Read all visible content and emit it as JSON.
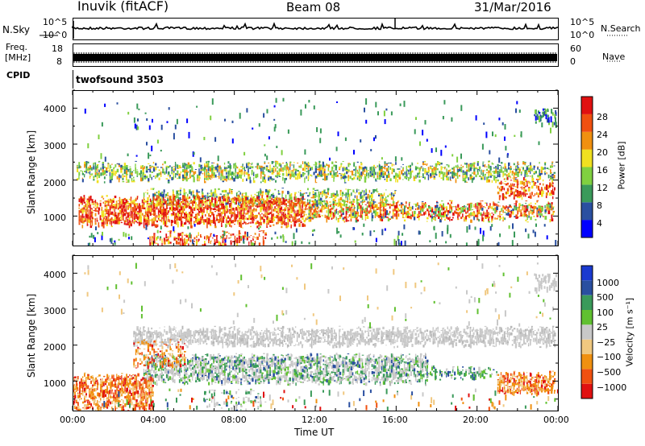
{
  "header": {
    "station": "Inuvik (fitACF)",
    "beam": "Beam 08",
    "date": "31/Mar/2016"
  },
  "noise_panel": {
    "left_label": "N.Sky",
    "left_ticks": [
      "10^5",
      "10^0"
    ],
    "right_ticks": [
      "10^5",
      "10^0"
    ],
    "right_label": "N.Search"
  },
  "freq_panel": {
    "left_label_1": "Freq.",
    "left_label_2": "[MHz]",
    "left_ticks": [
      "18",
      "8"
    ],
    "right_ticks": [
      "60",
      "0"
    ],
    "right_label": "Nave"
  },
  "cpid": {
    "label": "CPID",
    "value": "twofsound 3503"
  },
  "chart_data": [
    {
      "type": "heatmap",
      "panel": "power",
      "xlabel": "",
      "ylabel": "Slant Range [km]",
      "xlim_hours": [
        0,
        24
      ],
      "ylim": [
        180,
        4500
      ],
      "yticks": [
        "4000",
        "3000",
        "2000",
        "1000"
      ],
      "colorbar": {
        "label": "Power [dB]",
        "ticks": [
          "28",
          "24",
          "20",
          "16",
          "12",
          "8",
          "4"
        ],
        "colors": [
          "#0000ff",
          "#2a4fa0",
          "#3a9a5a",
          "#80d040",
          "#f0e020",
          "#f09010",
          "#f05010",
          "#e01010"
        ]
      },
      "bands": [
        {
          "range_km": [
            2050,
            2450
          ],
          "hours": [
            0.2,
            23.8
          ],
          "level": "12-20 dB"
        },
        {
          "range_km": [
            800,
            1500
          ],
          "hours": [
            0.3,
            23.8
          ],
          "level": "20-28 dB"
        },
        {
          "range_km": [
            200,
            500
          ],
          "hours": [
            3.8,
            9.5
          ],
          "level": "24-28 dB"
        }
      ]
    },
    {
      "type": "heatmap",
      "panel": "velocity",
      "xlabel": "Time UT",
      "ylabel": "Slant Range [km]",
      "xlim_hours": [
        0,
        24
      ],
      "ylim": [
        180,
        4500
      ],
      "yticks": [
        "4000",
        "3000",
        "2000",
        "1000"
      ],
      "xticks": [
        "00:00",
        "04:00",
        "08:00",
        "12:00",
        "16:00",
        "20:00",
        "00:00"
      ],
      "colorbar": {
        "label": "Velocity [m s⁻¹]",
        "ticks": [
          "1000",
          "500",
          "100",
          "25",
          "−25",
          "−100",
          "−500",
          "−1000"
        ],
        "colors": [
          "#e01010",
          "#f05010",
          "#f09010",
          "#f0c880",
          "#c8c8c8",
          "#60c030",
          "#3a9a5a",
          "#2a4fa0",
          "#1a3ad0"
        ]
      },
      "bands": [
        {
          "range_km": [
            2000,
            2450
          ],
          "hours": [
            3.0,
            23.8
          ],
          "velocity": "-25..25 m/s"
        },
        {
          "range_km": [
            900,
            1700
          ],
          "hours": [
            3.5,
            17.5
          ],
          "velocity": "100..500 m/s"
        },
        {
          "range_km": [
            700,
            1200
          ],
          "hours": [
            21.0,
            23.8
          ],
          "velocity": "-100..-500 m/s"
        },
        {
          "range_km": [
            200,
            1100
          ],
          "hours": [
            0.0,
            4.0
          ],
          "velocity": "-100..-500 m/s"
        }
      ]
    }
  ]
}
